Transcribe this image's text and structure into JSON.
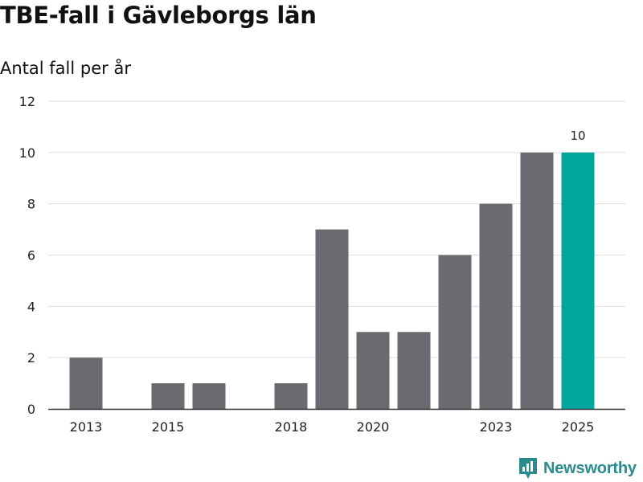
{
  "chart_data": {
    "type": "bar",
    "title": "TBE-fall i Gävleborgs län",
    "subtitle": "Antal fall per år",
    "categories": [
      "2013",
      "2014",
      "2015",
      "2016",
      "2017",
      "2018",
      "2019",
      "2020",
      "2021",
      "2022",
      "2023",
      "2024",
      "2025"
    ],
    "values": [
      2,
      0,
      1,
      1,
      0,
      1,
      7,
      3,
      3,
      6,
      8,
      10,
      10
    ],
    "x_tick_labels": [
      "2013",
      "2015",
      "2018",
      "2020",
      "2023",
      "2025"
    ],
    "y_ticks": [
      0,
      2,
      4,
      6,
      8,
      10,
      12
    ],
    "ylim": [
      0,
      12
    ],
    "xlabel": "",
    "ylabel": "",
    "grid": true,
    "highlight_category": "2025",
    "data_labels": [
      {
        "category": "2025",
        "text": "10"
      }
    ],
    "colors": {
      "bar": "#6b6a70",
      "highlight": "#00a69c",
      "grid": "#dddddd",
      "axis": "#333333"
    }
  },
  "branding": {
    "name": "Newsworthy",
    "icon": "newsworthy-logo-icon",
    "color": "#2a8b8e"
  }
}
